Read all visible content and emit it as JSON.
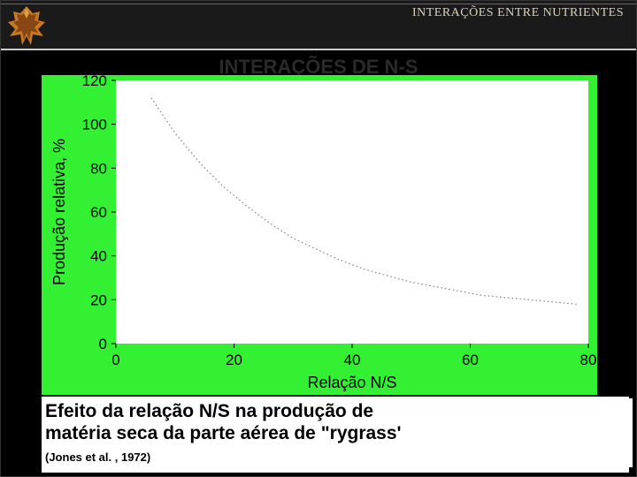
{
  "header": {
    "title": "INTERAÇÕES ENTRE NUTRIENTES",
    "subtitle": "INTERAÇÕES DE N-S"
  },
  "chart": {
    "type": "line",
    "bg_color": "#33f033",
    "plot_bg": "#ffffff",
    "line_color": "#808080",
    "line_width": 1.2,
    "line_dash": "1.5,3",
    "xlabel": "Relação N/S",
    "ylabel": "Produção relativa, %",
    "label_fontsize": 18,
    "tick_fontsize": 17,
    "xlim": [
      0,
      80
    ],
    "ylim": [
      0,
      120
    ],
    "xtick_step": 20,
    "ytick_step": 20,
    "x_ticks": [
      0,
      20,
      40,
      60,
      80
    ],
    "y_ticks": [
      0,
      20,
      40,
      60,
      80,
      100,
      120
    ],
    "points_x": [
      6,
      10,
      14,
      18,
      22,
      26,
      30,
      34,
      38,
      42,
      46,
      50,
      54,
      58,
      62,
      66,
      70,
      74,
      78
    ],
    "points_y": [
      112,
      96,
      83,
      72,
      63,
      55,
      48,
      43,
      38,
      34,
      31,
      28,
      26,
      24,
      22,
      21,
      20,
      19,
      18
    ]
  },
  "caption": {
    "line1": "Efeito da relação N/S na produção de",
    "line2": "matéria seca da parte aérea de \"rygrass'",
    "citation": "(Jones et al. , 1972)"
  },
  "leaf": {
    "fill1": "#c87820",
    "fill2": "#6b3010",
    "fill3": "#d8a040"
  }
}
